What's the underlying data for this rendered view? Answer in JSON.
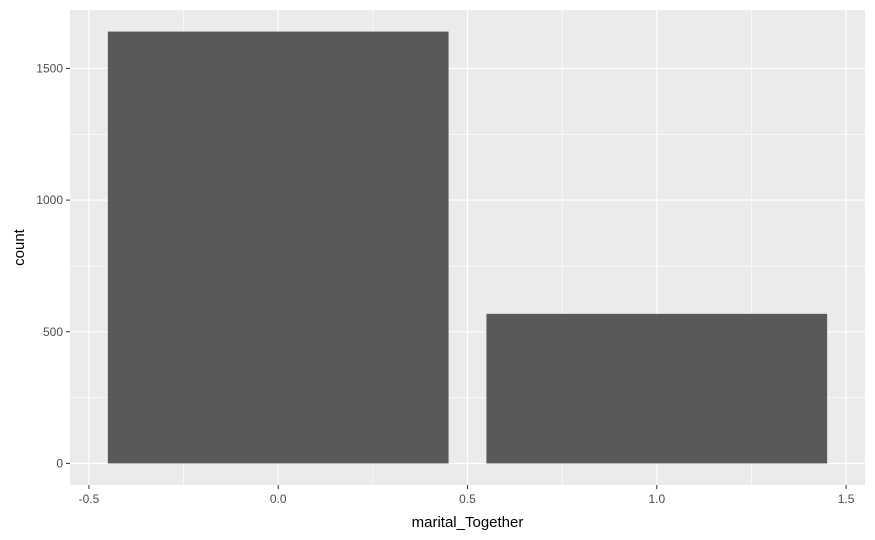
{
  "chart_data": {
    "type": "bar",
    "title": "",
    "xlabel": "marital_Together",
    "ylabel": "count",
    "x": [
      0,
      1
    ],
    "values": [
      1640,
      568
    ],
    "bar_width": 0.9,
    "xlim": [
      -0.5,
      1.5
    ],
    "ylim": [
      0,
      1640
    ],
    "xticks": [
      -0.5,
      0.0,
      0.5,
      1.0,
      1.5
    ],
    "xtick_labels": [
      "-0.5",
      "0.0",
      "0.5",
      "1.0",
      "1.5"
    ],
    "yticks": [
      0,
      500,
      1000,
      1500
    ],
    "ytick_labels": [
      "0",
      "500",
      "1000",
      "1500"
    ],
    "grid": true,
    "legend": "none",
    "colors": {
      "panel_background": "#ebebeb",
      "grid": "#ffffff",
      "bar": "#595959",
      "tick_label": "#4d4d4d",
      "tick": "#333333"
    }
  }
}
